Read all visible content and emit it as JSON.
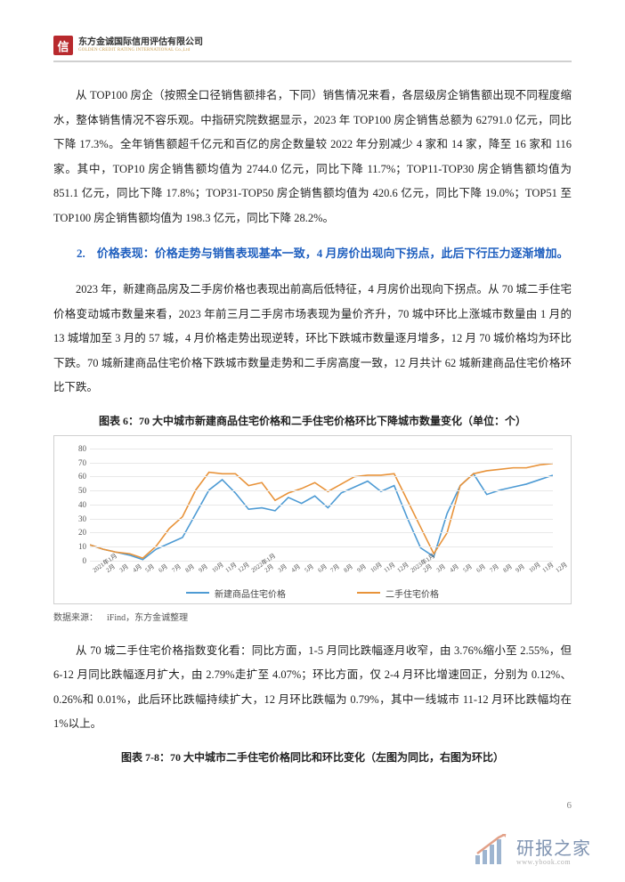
{
  "header": {
    "logo_char": "信",
    "logo_cn": "东方金诚国际信用评估有限公司",
    "logo_en": "GOLDEN CREDIT RATING INTERNATIONAL Co.,Ltd"
  },
  "para1": "从 TOP100 房企（按照全口径销售额排名，下同）销售情况来看，各层级房企销售额出现不同程度缩水，整体销售情况不容乐观。中指研究院数据显示，2023 年 TOP100 房企销售总额为 62791.0 亿元，同比下降 17.3%。全年销售额超千亿元和百亿的房企数量较 2022 年分别减少 4 家和 14 家，降至 16 家和 116 家。其中，TOP10 房企销售额均值为 2744.0 亿元，同比下降 11.7%；TOP11-TOP30 房企销售额均值为 851.1 亿元，同比下降 17.8%；TOP31-TOP50 房企销售额均值为 420.6 亿元，同比下降 19.0%；TOP51 至 TOP100 房企销售额均值为 198.3 亿元，同比下降 28.2%。",
  "section2_title": "2.　价格表现：价格走势与销售表现基本一致，4 月房价出现向下拐点，此后下行压力逐渐增加。",
  "para2": "2023 年，新建商品房及二手房价格也表现出前高后低特征，4 月房价出现向下拐点。从 70 城二手住宅价格变动城市数量来看，2023 年前三月二手房市场表现为量价齐升，70 城中环比上涨城市数量由 1 月的 13 城增加至 3 月的 57 城，4 月价格走势出现逆转，环比下跌城市数量逐月增多，12 月 70 城价格均为环比下跌。70 城新建商品住宅价格下跌城市数量走势和二手房高度一致，12 月共计 62 城新建商品住宅价格环比下跌。",
  "chart6": {
    "title": "图表 6：70 大中城市新建商品住宅价格和二手住宅价格环比下降城市数量变化（单位：个）",
    "type": "line",
    "ylim": [
      0,
      80
    ],
    "ytick_step": 10,
    "yticks": [
      0,
      10,
      20,
      30,
      40,
      50,
      60,
      70,
      80
    ],
    "categories": [
      "2021年1月",
      "2月",
      "3月",
      "4月",
      "5月",
      "6月",
      "7月",
      "8月",
      "9月",
      "10月",
      "11月",
      "12月",
      "2022年1月",
      "2月",
      "3月",
      "4月",
      "5月",
      "6月",
      "7月",
      "8月",
      "9月",
      "10月",
      "11月",
      "12月",
      "2023年1月",
      "2月",
      "3月",
      "4月",
      "5月",
      "6月",
      "7月",
      "8月",
      "9月",
      "10月",
      "11月",
      "12月"
    ],
    "series": [
      {
        "name": "新建商品住宅价格",
        "color": "#4e9bd4",
        "values": [
          15,
          12,
          10,
          8,
          5,
          12,
          16,
          20,
          36,
          52,
          59,
          50,
          39,
          40,
          38,
          47,
          43,
          48,
          40,
          50,
          54,
          58,
          51,
          55,
          33,
          13,
          7,
          36,
          55,
          63,
          49,
          52,
          54,
          56,
          59,
          62
        ]
      },
      {
        "name": "二手住宅价格",
        "color": "#e8933a",
        "values": [
          15,
          12,
          10,
          9,
          6,
          14,
          26,
          34,
          52,
          64,
          63,
          63,
          55,
          57,
          45,
          50,
          53,
          57,
          51,
          56,
          61,
          62,
          62,
          63,
          45,
          27,
          9,
          23,
          55,
          63,
          65,
          66,
          67,
          67,
          69,
          70
        ]
      }
    ],
    "grid_color": "#e8e8e8",
    "background_color": "#ffffff",
    "axis_font_size": 9
  },
  "chart6_source": "数据来源： iFind，东方金诚整理",
  "para3": "从 70 城二手住宅价格指数变化看：同比方面，1-5 月同比跌幅逐月收窄，由 3.76%缩小至 2.55%，但 6-12 月同比跌幅逐月扩大，由 2.79%走扩至 4.07%；环比方面，仅 2-4 月环比增速回正，分别为 0.12%、0.26%和 0.01%，此后环比跌幅持续扩大，12 月环比跌幅为 0.79%，其中一线城市 11-12 月环比跌幅均在 1%以上。",
  "chart78_title": "图表 7-8：70 大中城市二手住宅价格同比和环比变化（左图为同比，右图为环比）",
  "page_number": "6",
  "watermark": {
    "text": "研报之家",
    "sub": "www.ybook.com"
  }
}
